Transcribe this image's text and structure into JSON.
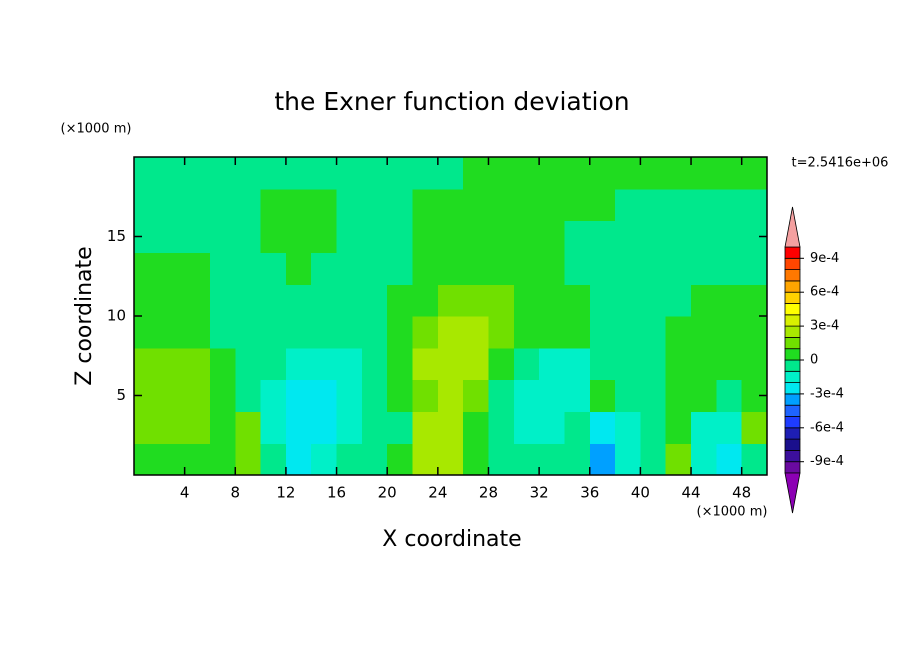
{
  "chart_data": {
    "type": "contour",
    "title": "the Exner function deviation",
    "x_label": "X coordinate",
    "y_label": "Z coordinate",
    "x_unit": "(×1000 m)",
    "y_unit": "(×1000 m)",
    "annotation": "t=2.5416e+06",
    "xlim": [
      0,
      50
    ],
    "ylim": [
      0,
      20
    ],
    "xticks": [
      4,
      8,
      12,
      16,
      20,
      24,
      28,
      32,
      36,
      40,
      44,
      48
    ],
    "yticks": [
      5,
      10,
      15
    ],
    "x": [
      1,
      3,
      5,
      7,
      9,
      11,
      13,
      15,
      17,
      19,
      21,
      23,
      25,
      27,
      29,
      31,
      33,
      35,
      37,
      39,
      41,
      43,
      45,
      47,
      49
    ],
    "y": [
      1,
      3,
      5,
      7,
      9,
      11,
      13,
      15,
      17,
      19
    ],
    "z": [
      [
        5e-05,
        5e-05,
        5e-05,
        5e-05,
        0.00015,
        -5e-05,
        -0.00025,
        -0.00015,
        -5e-05,
        -5e-05,
        5e-05,
        0.00025,
        0.00025,
        5e-05,
        -5e-05,
        -5e-05,
        -5e-05,
        -5e-05,
        -0.00035,
        -0.00015,
        -5e-05,
        0.00015,
        -0.00015,
        -0.00025,
        -5e-05
      ],
      [
        0.00015,
        0.00015,
        0.00015,
        5e-05,
        0.00015,
        -0.00015,
        -0.00025,
        -0.00025,
        -0.00015,
        -5e-05,
        -5e-05,
        0.00025,
        0.00025,
        5e-05,
        -5e-05,
        -0.00015,
        -0.00015,
        -5e-05,
        -0.00025,
        -0.00015,
        -5e-05,
        5e-05,
        -0.00015,
        -0.00015,
        0.00015
      ],
      [
        0.00015,
        0.00015,
        0.00015,
        5e-05,
        -5e-05,
        -0.00015,
        -0.00025,
        -0.00025,
        -0.00015,
        -5e-05,
        5e-05,
        0.00015,
        0.00025,
        0.00015,
        -5e-05,
        -0.00015,
        -0.00015,
        -0.00015,
        5e-05,
        -5e-05,
        -5e-05,
        5e-05,
        5e-05,
        -5e-05,
        5e-05
      ],
      [
        0.00015,
        0.00015,
        0.00015,
        5e-05,
        -5e-05,
        -5e-05,
        -0.00015,
        -0.00015,
        -0.00015,
        -5e-05,
        5e-05,
        0.00025,
        0.00025,
        0.00025,
        5e-05,
        -5e-05,
        -0.00015,
        -0.00015,
        -5e-05,
        -5e-05,
        -5e-05,
        5e-05,
        5e-05,
        5e-05,
        5e-05
      ],
      [
        5e-05,
        5e-05,
        5e-05,
        -5e-05,
        -5e-05,
        -5e-05,
        -5e-05,
        -5e-05,
        -5e-05,
        -5e-05,
        5e-05,
        0.00015,
        0.00025,
        0.00025,
        0.00015,
        5e-05,
        5e-05,
        5e-05,
        -5e-05,
        -5e-05,
        -5e-05,
        5e-05,
        5e-05,
        5e-05,
        5e-05
      ],
      [
        5e-05,
        5e-05,
        5e-05,
        -5e-05,
        -5e-05,
        -5e-05,
        -5e-05,
        -5e-05,
        -5e-05,
        -5e-05,
        5e-05,
        5e-05,
        0.00015,
        0.00015,
        0.00015,
        5e-05,
        5e-05,
        5e-05,
        -5e-05,
        -5e-05,
        -5e-05,
        -5e-05,
        5e-05,
        5e-05,
        5e-05
      ],
      [
        5e-05,
        5e-05,
        5e-05,
        -5e-05,
        -5e-05,
        -5e-05,
        5e-05,
        -5e-05,
        -5e-05,
        -5e-05,
        -5e-05,
        5e-05,
        5e-05,
        5e-05,
        5e-05,
        5e-05,
        5e-05,
        -5e-05,
        -5e-05,
        -5e-05,
        -5e-05,
        -5e-05,
        -5e-05,
        -5e-05,
        -5e-05
      ],
      [
        -5e-05,
        -5e-05,
        -5e-05,
        -5e-05,
        -5e-05,
        5e-05,
        5e-05,
        5e-05,
        -5e-05,
        -5e-05,
        -5e-05,
        5e-05,
        5e-05,
        5e-05,
        5e-05,
        5e-05,
        5e-05,
        -5e-05,
        -5e-05,
        -5e-05,
        -5e-05,
        -5e-05,
        -5e-05,
        -5e-05,
        -5e-05
      ],
      [
        -5e-05,
        -5e-05,
        -5e-05,
        -5e-05,
        -5e-05,
        5e-05,
        5e-05,
        5e-05,
        -5e-05,
        -5e-05,
        -5e-05,
        5e-05,
        5e-05,
        5e-05,
        5e-05,
        5e-05,
        5e-05,
        5e-05,
        5e-05,
        -5e-05,
        -5e-05,
        -5e-05,
        -5e-05,
        -5e-05,
        -5e-05
      ],
      [
        -5e-05,
        -5e-05,
        -5e-05,
        -5e-05,
        -5e-05,
        -5e-05,
        -5e-05,
        -5e-05,
        -5e-05,
        -5e-05,
        -5e-05,
        -5e-05,
        -5e-05,
        5e-05,
        5e-05,
        5e-05,
        5e-05,
        5e-05,
        5e-05,
        5e-05,
        5e-05,
        5e-05,
        5e-05,
        5e-05,
        5e-05
      ]
    ],
    "levels": [
      -0.001,
      -0.0009,
      -0.0008,
      -0.0007,
      -0.0006,
      -0.0005,
      -0.0004,
      -0.0003,
      -0.0002,
      -0.0001,
      0,
      0.0001,
      0.0002,
      0.0003,
      0.0004,
      0.0005,
      0.0006,
      0.0007,
      0.0008,
      0.0009,
      0.001
    ],
    "colors": [
      "#6a0aa0",
      "#3c0f9c",
      "#1a0f8c",
      "#1e1eb4",
      "#1e3cff",
      "#1e64ff",
      "#00a0ff",
      "#00e8f0",
      "#00f0c8",
      "#00e88c",
      "#20dc20",
      "#70e000",
      "#a8e800",
      "#d8f000",
      "#ffff00",
      "#ffd200",
      "#ffa500",
      "#ff7800",
      "#ff4600",
      "#ff0000"
    ],
    "extend_colors": [
      "#8c00b4",
      "#f4a0a0"
    ],
    "colorbar_ticks": [
      {
        "value": -0.0009,
        "label": "-9e-4"
      },
      {
        "value": -0.0006,
        "label": "-6e-4"
      },
      {
        "value": -0.0003,
        "label": "-3e-4"
      },
      0,
      {
        "value": 0.0003,
        "label": "3e-4"
      },
      {
        "value": 0.0006,
        "label": "6e-4"
      },
      {
        "value": 0.0009,
        "label": "9e-4"
      }
    ]
  }
}
